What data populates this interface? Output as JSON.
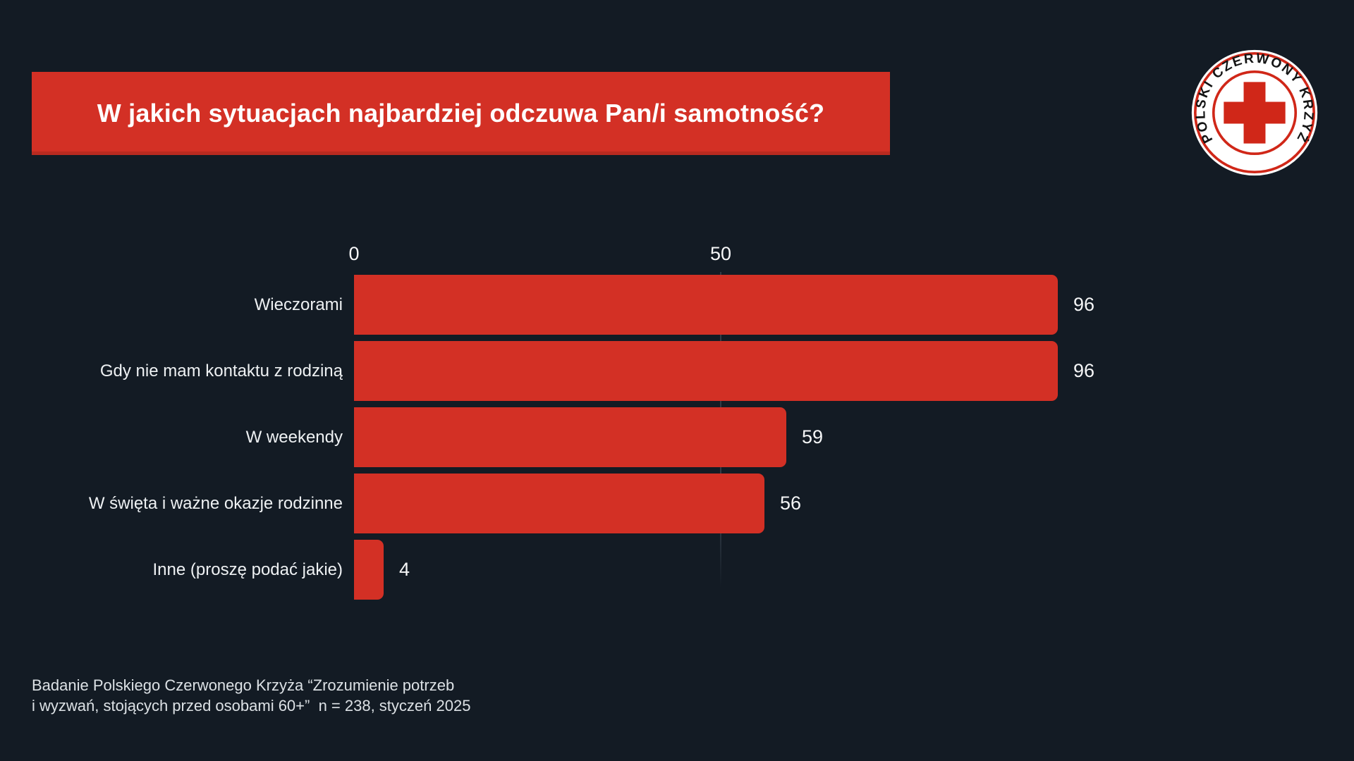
{
  "header": {
    "title": "W jakich sytuacjach najbardziej odczuwa Pan/i samotność?"
  },
  "logo": {
    "ring_text": "POLSKI CZERWONY KRZYŻ"
  },
  "chart_data": {
    "type": "bar",
    "orientation": "horizontal",
    "title": "W jakich sytuacjach najbardziej odczuwa Pan/i samotność?",
    "categories": [
      "Wieczorami",
      "Gdy nie mam kontaktu z rodziną",
      "W weekendy",
      "W święta i ważne okazje rodzinne",
      "Inne (proszę podać jakie)"
    ],
    "values": [
      96,
      96,
      59,
      56,
      4
    ],
    "x_ticks": [
      "0",
      "50"
    ],
    "xlim": [
      0,
      96
    ],
    "grid": "single vertical gridline at x=50",
    "legend": "none",
    "bar_color": "#d33025"
  },
  "footer": {
    "line1": "Badanie Polskiego Czerwonego Krzyża “Zrozumienie potrzeb",
    "line2": "i wyzwań, stojących przed osobami 60+”  n = 238, styczeń 2025"
  },
  "colors": {
    "background": "#131b24",
    "accent_red": "#d33025",
    "logo_red": "#d02718",
    "text": "#f3f5f6",
    "muted_text": "#dce1e5",
    "gridline": "rgba(168,188,206,0.20)"
  }
}
